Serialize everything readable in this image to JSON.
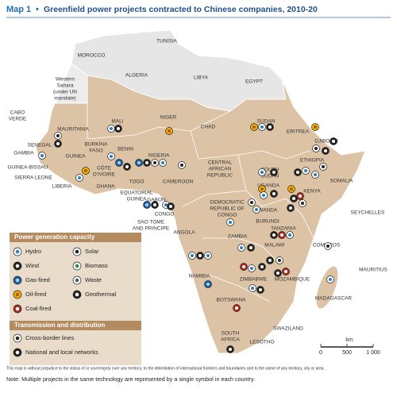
{
  "header": {
    "map_label": "Map 1",
    "separator": "•",
    "title": "Greenfield power projects contracted to Chinese companies, 2010-20"
  },
  "countries": [
    [
      "TUNISIA"
    ],
    [
      "MOROCCO"
    ],
    [
      "ALGERIA"
    ],
    [
      "LIBYA"
    ],
    [
      "EGYPT"
    ],
    [
      "Western",
      "Sahara",
      "(under UN",
      "mandate)"
    ],
    [
      "CABO",
      "VERDE"
    ],
    [
      "MAURITANIA"
    ],
    [
      "MALI"
    ],
    [
      "NIGER"
    ],
    [
      "CHAD"
    ],
    [
      "SUDAN"
    ],
    [
      "ERITREA"
    ],
    [
      "DJIBOUTI"
    ],
    [
      "SENEGAL"
    ],
    [
      "GAMBIA"
    ],
    [
      "GUINEA"
    ],
    [
      "BURKINA",
      "FASO"
    ],
    [
      "BENIN"
    ],
    [
      "NIGERIA"
    ],
    [
      "GUINEA-BISSAU"
    ],
    [
      "SIERRA LEONE"
    ],
    [
      "LIBERIA"
    ],
    [
      "CÔTE",
      "D'IVOIRE"
    ],
    [
      "GHANA"
    ],
    [
      "TOGO"
    ],
    [
      "CENTRAL",
      "AFRICAN",
      "REPUBLIC"
    ],
    [
      "SOUTH",
      "SUDAN"
    ],
    [
      "ETHIOPIA"
    ],
    [
      "SOMALIA"
    ],
    [
      "CAMEROON"
    ],
    [
      "EQUATORIAL",
      "GUINEA"
    ],
    [
      "GABON"
    ],
    [
      "CONGO"
    ],
    [
      "DEMOCRATIC",
      "REPUBLIC OF",
      "CONGO"
    ],
    [
      "UGANDA"
    ],
    [
      "KENYA"
    ],
    [
      "RWANDA"
    ],
    [
      "BURUNDI"
    ],
    [
      "SAO TOME",
      "AND PRINCIPE"
    ],
    [
      "SEYCHELLES"
    ],
    [
      "TANZANIA"
    ],
    [
      "COMOROS"
    ],
    [
      "MALAWI"
    ],
    [
      "ANGOLA"
    ],
    [
      "ZAMBIA"
    ],
    [
      "MOZAMBIQUE"
    ],
    [
      "ZIMBABWE"
    ],
    [
      "MAURITIUS"
    ],
    [
      "MADAGASCAR"
    ],
    [
      "NAMIBIA"
    ],
    [
      "BOTSWANA"
    ],
    [
      "SWAZILAND"
    ],
    [
      "SOUTH",
      "AFRICA"
    ],
    [
      "LESOTHO"
    ]
  ],
  "legend": {
    "generation_title": "Power generation capacity",
    "generation_items": [
      "Hydro",
      "Solar",
      "Wind",
      "Biomass",
      "Gas-fired",
      "Waste",
      "Oil-fired",
      "Geothermal",
      "Coal-fired"
    ],
    "transmission_title": "Transmission and distribution",
    "transmission_items": [
      "Cross-border lines",
      "National and local networks"
    ]
  },
  "scale": {
    "unit": "km",
    "ticks": [
      0,
      500,
      {
        "value": 1000,
        "label": "1 000"
      }
    ]
  },
  "footnotes": [
    "This map is without prejudice to the status of or sovereignty over any territory, to the delimitation of international frontiers and boundaries and to the name of any territory, city or area.",
    "Note: Multiple projects in the same technology are represented by a single symbol in each country."
  ]
}
